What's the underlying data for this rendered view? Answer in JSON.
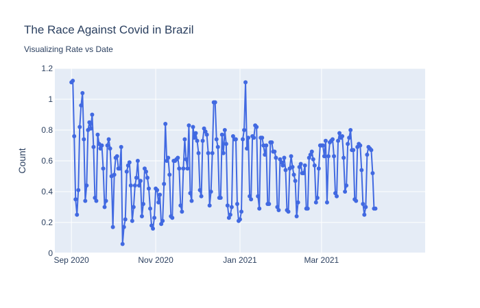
{
  "chart_data": {
    "type": "line",
    "title": "The Race Against Covid in Brazil",
    "subtitle": "Visualizing Rate vs Date",
    "xlabel": "",
    "ylabel": "Count",
    "ylim": [
      0,
      1.2
    ],
    "xlim": [
      "2020-08-20",
      "2021-05-15"
    ],
    "y_ticks": [
      0,
      0.2,
      0.4,
      0.6,
      0.8,
      1,
      1.2
    ],
    "y_tick_labels": [
      "0",
      "0.2",
      "0.4",
      "0.6",
      "0.8",
      "1",
      "1.2"
    ],
    "x_ticks": [
      "2020-09-01",
      "2020-11-01",
      "2021-01-01",
      "2021-03-01"
    ],
    "x_tick_labels": [
      "Sep 2020",
      "Nov 2020",
      "Jan 2021",
      "Mar 2021"
    ],
    "grid": true,
    "legend": "none",
    "colors": {
      "series": "#4169e1",
      "plot_bg": "#e5ecf6",
      "grid": "#ffffff",
      "text": "#2a3f5f"
    },
    "series": [
      {
        "start_date": "2020-09-01",
        "values": [
          1.11,
          1.12,
          0.76,
          0.35,
          0.25,
          0.41,
          0.82,
          0.96,
          1.04,
          0.74,
          0.34,
          0.44,
          0.8,
          0.85,
          0.81,
          0.9,
          0.69,
          0.36,
          0.34,
          0.77,
          0.71,
          0.68,
          0.7,
          0.55,
          0.3,
          0.34,
          0.7,
          0.74,
          0.68,
          0.5,
          0.17,
          0.51,
          0.62,
          0.63,
          0.55,
          0.55,
          0.69,
          0.06,
          0.17,
          0.22,
          0.53,
          0.57,
          0.59,
          0.44,
          0.21,
          0.3,
          0.44,
          0.49,
          0.6,
          0.44,
          0.47,
          0.24,
          0.32,
          0.55,
          0.53,
          0.49,
          0.42,
          0.29,
          0.18,
          0.16,
          0.23,
          0.42,
          0.41,
          0.33,
          0.38,
          0.19,
          0.21,
          0.45,
          0.84,
          0.6,
          0.62,
          0.51,
          0.24,
          0.23,
          0.6,
          0.6,
          0.61,
          0.62,
          0.55,
          0.31,
          0.27,
          0.55,
          0.74,
          0.61,
          0.55,
          0.83,
          0.39,
          0.34,
          0.82,
          0.75,
          0.78,
          0.73,
          0.65,
          0.41,
          0.37,
          0.73,
          0.81,
          0.79,
          0.77,
          0.65,
          0.31,
          0.4,
          0.65,
          0.98,
          0.98,
          0.74,
          0.69,
          0.36,
          0.36,
          0.77,
          0.65,
          0.8,
          0.71,
          0.31,
          0.23,
          0.25,
          0.3,
          0.76,
          0.74,
          0.74,
          0.32,
          0.21,
          0.22,
          0.27,
          0.74,
          0.8,
          1.11,
          0.68,
          0.75,
          0.37,
          0.35,
          0.76,
          0.75,
          0.83,
          0.82,
          0.37,
          0.29,
          0.75,
          0.75,
          0.7,
          0.64,
          0.7,
          0.32,
          0.32,
          0.72,
          0.72,
          0.66,
          0.66,
          0.62,
          0.3,
          0.28,
          0.61,
          0.59,
          0.57,
          0.62,
          0.54,
          0.28,
          0.27,
          0.55,
          0.63,
          0.56,
          0.51,
          0.47,
          0.24,
          0.33,
          0.56,
          0.58,
          0.52,
          0.52,
          0.57,
          0.29,
          0.29,
          0.62,
          0.64,
          0.66,
          0.61,
          0.57,
          0.33,
          0.36,
          0.55,
          0.7,
          0.7,
          0.7,
          0.63,
          0.73,
          0.33,
          0.63,
          0.72,
          0.73,
          0.74,
          0.63,
          0.39,
          0.37,
          0.73,
          0.78,
          0.75,
          0.76,
          0.62,
          0.4,
          0.44,
          0.71,
          0.75,
          0.8,
          0.67,
          0.67,
          0.35,
          0.34,
          0.69,
          0.71,
          0.7,
          0.54,
          0.32,
          0.25,
          0.3,
          0.64,
          0.69,
          0.68,
          0.67,
          0.52,
          0.29,
          0.29
        ]
      }
    ]
  }
}
